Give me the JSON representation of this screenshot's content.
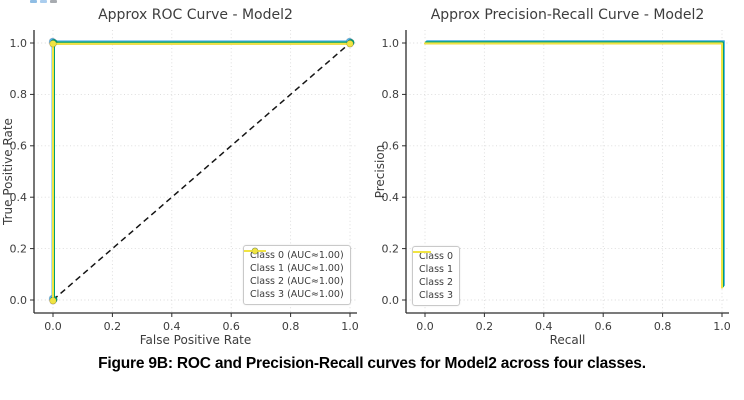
{
  "artifact": {
    "description": "clipped-blue-text-fragment-at-top",
    "clipped_dashes": [
      "#8fbde4",
      "#aacdee",
      "#a7abb0"
    ]
  },
  "caption": "Figure 9B: ROC and Precision-Recall curves for Model2 across four classes.",
  "palette": {
    "class0": "#E69F00",
    "class1": "#56B4E9",
    "class2": "#009E73",
    "class3": "#F0E442",
    "marker_fill": "#F0E442",
    "marker_edge": "#d4c430",
    "reference": "#151515",
    "axis": "#2c2c2c",
    "grid": "#dadada",
    "text": "#3d3d3d"
  },
  "chart_data": [
    {
      "id": "roc",
      "type": "line",
      "title": "Approx ROC Curve - Model2",
      "xlabel": "False Positive Rate",
      "ylabel": "True Positive Rate",
      "xticks": [
        0.0,
        0.2,
        0.4,
        0.6,
        0.8,
        1.0
      ],
      "yticks": [
        0.0,
        0.2,
        0.4,
        0.6,
        0.8,
        1.0
      ],
      "xlim": [
        0,
        1
      ],
      "ylim": [
        0,
        1
      ],
      "grid": true,
      "legend_position": "bottom-right",
      "reference_line": {
        "name": "chance-diagonal",
        "style": "dashed",
        "points": [
          [
            0,
            0
          ],
          [
            1,
            1
          ]
        ]
      },
      "series": [
        {
          "name": "Class 0",
          "auc": "1.00",
          "label": "Class 0 (AUC≈1.00)",
          "color": "#E69F00",
          "marker": true,
          "points": [
            [
              0,
              0
            ],
            [
              0,
              1
            ],
            [
              1,
              1
            ]
          ]
        },
        {
          "name": "Class 1",
          "auc": "1.00",
          "label": "Class 1 (AUC≈1.00)",
          "color": "#56B4E9",
          "marker": true,
          "points": [
            [
              0,
              0
            ],
            [
              0,
              1
            ],
            [
              1,
              1
            ]
          ]
        },
        {
          "name": "Class 2",
          "auc": "1.00",
          "label": "Class 2 (AUC≈1.00)",
          "color": "#009E73",
          "marker": true,
          "points": [
            [
              0,
              0
            ],
            [
              0,
              1
            ],
            [
              1,
              1
            ]
          ]
        },
        {
          "name": "Class 3",
          "auc": "1.00",
          "label": "Class 3 (AUC≈1.00)",
          "color": "#F0E442",
          "marker": true,
          "points": [
            [
              0,
              0
            ],
            [
              0,
              1
            ],
            [
              1,
              1
            ]
          ]
        }
      ]
    },
    {
      "id": "pr",
      "type": "line",
      "title": "Approx Precision-Recall Curve - Model2",
      "xlabel": "Recall",
      "ylabel": "Precision",
      "xticks": [
        0.0,
        0.2,
        0.4,
        0.6,
        0.8,
        1.0
      ],
      "yticks": [
        0.0,
        0.2,
        0.4,
        0.6,
        0.8,
        1.0
      ],
      "xlim": [
        0,
        1
      ],
      "ylim": [
        0,
        1
      ],
      "grid": true,
      "legend_position": "bottom-left",
      "reference_line": null,
      "series": [
        {
          "name": "Class 0",
          "label": "Class 0",
          "color": "#E69F00",
          "marker": false,
          "points": [
            [
              0,
              1.0
            ],
            [
              1,
              1.0
            ],
            [
              1,
              0.05
            ]
          ]
        },
        {
          "name": "Class 1",
          "label": "Class 1",
          "color": "#56B4E9",
          "marker": false,
          "points": [
            [
              0,
              1.0
            ],
            [
              1,
              1.0
            ],
            [
              1,
              0.05
            ]
          ]
        },
        {
          "name": "Class 2",
          "label": "Class 2",
          "color": "#009E73",
          "marker": false,
          "points": [
            [
              0,
              1.0
            ],
            [
              1,
              1.0
            ],
            [
              1,
              0.05
            ]
          ]
        },
        {
          "name": "Class 3",
          "label": "Class 3",
          "color": "#F0E442",
          "marker": false,
          "points": [
            [
              0,
              1.0
            ],
            [
              1,
              1.0
            ],
            [
              1,
              0.05
            ]
          ]
        }
      ]
    }
  ]
}
